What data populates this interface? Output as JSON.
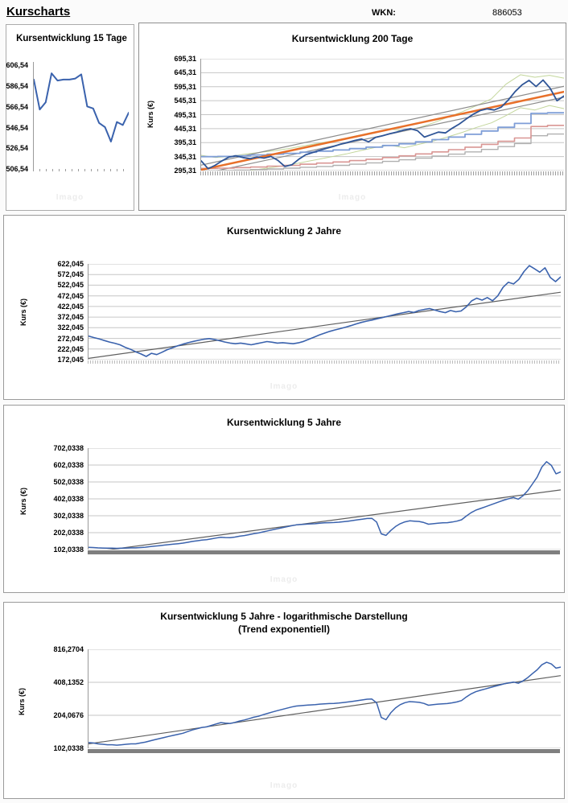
{
  "page": {
    "title": "Kurscharts",
    "wkn_label": "WKN:",
    "wkn_value": "886053",
    "watermark": "Imago"
  },
  "style": {
    "grid": "#c6c6c6",
    "axis": "#9a9a9a",
    "price_blue_dark": "#2f5597",
    "price_blue": "#3a62ad",
    "trend_orange": "#e8702a",
    "trend_gray": "#5f5f5f",
    "channel_gray": "#8c8c8c",
    "band_green": "#c3d69b",
    "step_blue": "#7f9ed7",
    "step_salmon": "#d99694",
    "step_gray": "#b0b0b0"
  },
  "chart_data": [
    {
      "type": "line",
      "title": "Kursentwicklung 15 Tage",
      "ylabel": "",
      "xlabel": "",
      "yticks": [
        "606,54",
        "586,54",
        "566,54",
        "546,54",
        "526,54",
        "506,54"
      ],
      "yticks_values": [
        606.54,
        586.54,
        566.54,
        546.54,
        526.54,
        506.54
      ],
      "ylim": [
        506.54,
        610.0
      ],
      "log": false,
      "grid": false,
      "series": [
        {
          "name": "kurs",
          "color": "#3a62ad",
          "w": 2,
          "points": [
            593,
            564,
            571,
            599,
            592,
            593,
            593,
            594,
            598,
            567,
            565,
            551,
            547,
            533,
            552,
            549,
            561
          ]
        }
      ]
    },
    {
      "type": "line",
      "title": "Kursentwicklung 200 Tage",
      "ylabel": "Kurs (€)",
      "xlabel": "",
      "yticks": [
        "695,31",
        "645,31",
        "595,31",
        "545,31",
        "495,31",
        "445,31",
        "395,31",
        "345,31",
        "295,31"
      ],
      "yticks_values": [
        695.31,
        645.31,
        595.31,
        545.31,
        495.31,
        445.31,
        395.31,
        345.31,
        295.31
      ],
      "ylim": [
        295.31,
        695.31
      ],
      "log": false,
      "grid": true,
      "series": [
        {
          "name": "band-oben",
          "color": "#c3d69b",
          "w": 1,
          "points": [
            350,
            342,
            346,
            354,
            360,
            366,
            374,
            383,
            392,
            401,
            412,
            423,
            434,
            444,
            437,
            449,
            466,
            486,
            506,
            528,
            552,
            604,
            638,
            629,
            636,
            626
          ]
        },
        {
          "name": "band-unten",
          "color": "#c3d69b",
          "w": 1,
          "points": [
            291,
            284,
            288,
            294,
            300,
            307,
            315,
            325,
            335,
            345,
            355,
            367,
            378,
            386,
            377,
            389,
            401,
            416,
            432,
            450,
            466,
            492,
            520,
            512,
            528,
            517
          ]
        },
        {
          "name": "kanal-oben",
          "color": "#8c8c8c",
          "w": 1.2,
          "points": [
            315,
            597
          ]
        },
        {
          "name": "kanal-unten",
          "color": "#8c8c8c",
          "w": 1.2,
          "points": [
            283,
            558
          ]
        },
        {
          "name": "stufe-grau",
          "color": "#b0b0b0",
          "w": 1.4,
          "step": true,
          "points": [
            295,
            296,
            297,
            299,
            301,
            304,
            307,
            310,
            314,
            318,
            323,
            328,
            334,
            340,
            347,
            354,
            362,
            371,
            381,
            392,
            420,
            426,
            426
          ]
        },
        {
          "name": "stufe-rot",
          "color": "#d99694",
          "w": 1.6,
          "step": true,
          "points": [
            303,
            304,
            306,
            308,
            311,
            314,
            318,
            322,
            326,
            331,
            336,
            342,
            348,
            355,
            362,
            370,
            379,
            389,
            400,
            412,
            453,
            457,
            457
          ]
        },
        {
          "name": "stufe-blau",
          "color": "#7f9ed7",
          "w": 1.8,
          "step": true,
          "points": [
            345,
            346,
            348,
            351,
            354,
            357,
            361,
            365,
            369,
            374,
            379,
            385,
            391,
            398,
            406,
            415,
            425,
            437,
            450,
            464,
            500,
            502,
            502
          ]
        },
        {
          "name": "trend",
          "color": "#e8702a",
          "w": 2.5,
          "points": [
            298,
            577
          ]
        },
        {
          "name": "kurs",
          "color": "#2f5597",
          "w": 1.8,
          "points": [
            330,
            302,
            314,
            330,
            344,
            348,
            342,
            338,
            344,
            340,
            346,
            332,
            310,
            316,
            336,
            352,
            360,
            368,
            375,
            382,
            390,
            396,
            403,
            408,
            398,
            414,
            420,
            427,
            433,
            440,
            445,
            438,
            415,
            424,
            433,
            430,
            447,
            462,
            480,
            497,
            510,
            516,
            512,
            522,
            547,
            578,
            602,
            618,
            596,
            619,
            590,
            545,
            562
          ]
        }
      ]
    },
    {
      "type": "line",
      "title": "Kursentwicklung 2 Jahre",
      "ylabel": "Kurs (€)",
      "xlabel": "",
      "yticks": [
        "622,045",
        "572,045",
        "522,045",
        "472,045",
        "422,045",
        "372,045",
        "322,045",
        "272,045",
        "222,045",
        "172,045"
      ],
      "yticks_values": [
        622.045,
        572.045,
        522.045,
        472.045,
        422.045,
        372.045,
        322.045,
        272.045,
        222.045,
        172.045
      ],
      "ylim": [
        172.045,
        622.045
      ],
      "log": false,
      "grid": true,
      "series": [
        {
          "name": "trend",
          "color": "#5f5f5f",
          "w": 1.2,
          "points": [
            178,
            489
          ]
        },
        {
          "name": "kurs",
          "color": "#3a62ad",
          "w": 1.6,
          "points": [
            283,
            276,
            270,
            262,
            255,
            249,
            242,
            230,
            221,
            209,
            199,
            187,
            202,
            196,
            207,
            219,
            228,
            237,
            245,
            252,
            258,
            263,
            268,
            271,
            267,
            261,
            255,
            250,
            247,
            250,
            246,
            242,
            247,
            252,
            257,
            254,
            250,
            252,
            249,
            247,
            251,
            258,
            268,
            278,
            288,
            297,
            305,
            312,
            318,
            325,
            332,
            340,
            347,
            353,
            358,
            364,
            370,
            376,
            382,
            388,
            393,
            398,
            394,
            403,
            408,
            412,
            405,
            398,
            393,
            403,
            397,
            401,
            420,
            448,
            461,
            452,
            464,
            449,
            472,
            512,
            536,
            528,
            549,
            586,
            614,
            599,
            583,
            604,
            558,
            539,
            561
          ]
        }
      ]
    },
    {
      "type": "line",
      "title": "Kursentwicklung 5 Jahre",
      "ylabel": "Kurs (€)",
      "xlabel": "",
      "yticks": [
        "702,0338",
        "602,0338",
        "502,0338",
        "402,0338",
        "302,0338",
        "202,0338",
        "102,0338"
      ],
      "yticks_values": [
        702.0338,
        602.0338,
        502.0338,
        402.0338,
        302.0338,
        202.0338,
        102.0338
      ],
      "ylim": [
        102.0338,
        702.0338
      ],
      "log": false,
      "grid": true,
      "series": [
        {
          "name": "trend",
          "color": "#5f5f5f",
          "w": 1.2,
          "points": [
            85,
            455
          ]
        },
        {
          "name": "kurs",
          "color": "#3a62ad",
          "w": 1.5,
          "points": [
            115,
            114,
            112,
            111,
            110,
            110,
            109,
            110,
            111,
            112,
            112,
            114,
            116,
            119,
            122,
            125,
            128,
            131,
            134,
            137,
            140,
            145,
            150,
            154,
            158,
            160,
            165,
            170,
            175,
            173,
            172,
            176,
            181,
            185,
            190,
            196,
            200,
            207,
            213,
            219,
            225,
            231,
            237,
            243,
            248,
            250,
            252,
            254,
            255,
            258,
            260,
            261,
            262,
            264,
            267,
            270,
            274,
            278,
            282,
            286,
            287,
            265,
            195,
            186,
            215,
            238,
            255,
            266,
            272,
            270,
            268,
            262,
            252,
            255,
            258,
            260,
            261,
            265,
            270,
            278,
            300,
            320,
            335,
            345,
            355,
            365,
            375,
            385,
            395,
            403,
            410,
            400,
            420,
            450,
            490,
            530,
            590,
            622,
            600,
            550,
            562
          ]
        }
      ]
    },
    {
      "type": "line",
      "title": "Kursentwicklung 5 Jahre - logarithmische Darstellung",
      "subtitle": "(Trend exponentiell)",
      "ylabel": "Kurs (€)",
      "xlabel": "",
      "yticks": [
        "816,2704",
        "408,1352",
        "204,0676",
        "102,0338"
      ],
      "yticks_values": [
        816.2704,
        408.1352,
        204.0676,
        102.0338
      ],
      "ylim": [
        102.0338,
        816.2704
      ],
      "log": true,
      "grid": true,
      "series": [
        {
          "name": "trend-exponentiell",
          "color": "#5f5f5f",
          "w": 1.2,
          "points": [
            112,
            470
          ]
        },
        {
          "name": "kurs",
          "color": "#3a62ad",
          "w": 1.5,
          "points": [
            115,
            114,
            112,
            111,
            110,
            110,
            109,
            110,
            111,
            112,
            112,
            114,
            116,
            119,
            122,
            125,
            128,
            131,
            134,
            137,
            140,
            145,
            150,
            154,
            158,
            160,
            165,
            170,
            175,
            173,
            172,
            176,
            181,
            185,
            190,
            196,
            200,
            207,
            213,
            219,
            225,
            231,
            237,
            243,
            248,
            250,
            252,
            254,
            255,
            258,
            260,
            261,
            262,
            264,
            267,
            270,
            274,
            278,
            282,
            286,
            287,
            265,
            195,
            186,
            215,
            238,
            255,
            266,
            272,
            270,
            268,
            262,
            252,
            255,
            258,
            260,
            261,
            265,
            270,
            278,
            300,
            320,
            335,
            345,
            355,
            365,
            375,
            385,
            395,
            403,
            410,
            400,
            420,
            450,
            490,
            530,
            590,
            622,
            600,
            550,
            562
          ]
        }
      ]
    }
  ]
}
